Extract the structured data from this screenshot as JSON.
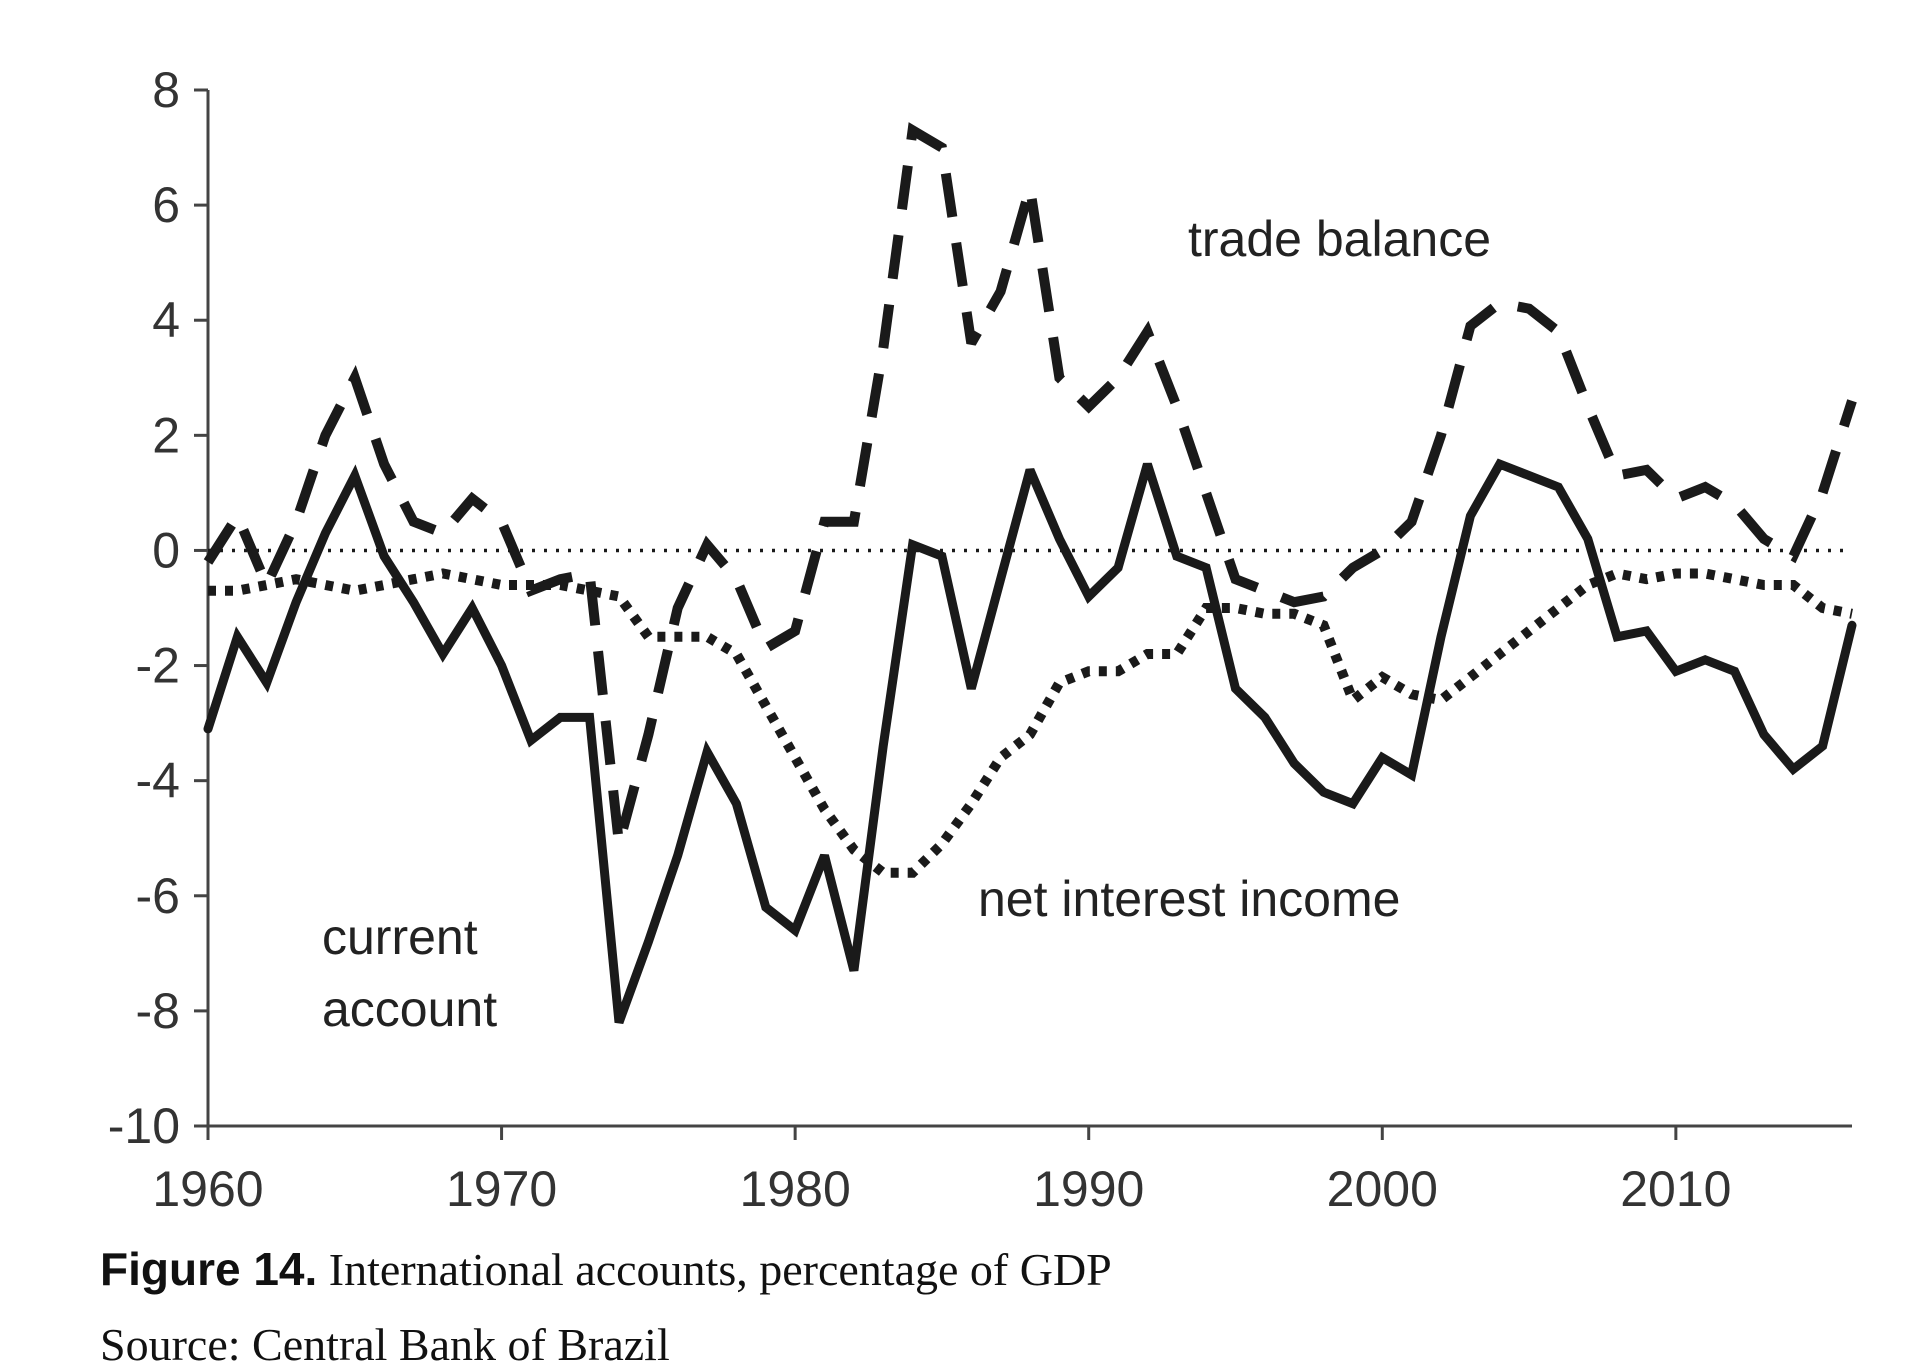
{
  "figure": {
    "number": "Figure 14.",
    "caption": "International accounts, percentage of GDP",
    "source": "Source: Central Bank of Brazil"
  },
  "colors": {
    "line": "#1a1a1a",
    "axis": "#444444"
  },
  "chart_data": {
    "type": "line",
    "title": "",
    "xlabel": "",
    "ylabel": "",
    "xlim": [
      1960,
      2016
    ],
    "ylim": [
      -10,
      8
    ],
    "xticks": [
      1960,
      1970,
      1980,
      1990,
      2000,
      2010
    ],
    "yticks": [
      8,
      6,
      4,
      2,
      0,
      -2,
      -4,
      -6,
      -8,
      -10
    ],
    "grid": false,
    "legend": "none",
    "reference_line": {
      "y": 0,
      "style": "dotted"
    },
    "x": [
      1960,
      1961,
      1962,
      1963,
      1964,
      1965,
      1966,
      1967,
      1968,
      1969,
      1970,
      1971,
      1972,
      1973,
      1974,
      1975,
      1976,
      1977,
      1978,
      1979,
      1980,
      1981,
      1982,
      1983,
      1984,
      1985,
      1986,
      1987,
      1988,
      1989,
      1990,
      1991,
      1992,
      1993,
      1994,
      1995,
      1996,
      1997,
      1998,
      1999,
      2000,
      2001,
      2002,
      2003,
      2004,
      2005,
      2006,
      2007,
      2008,
      2009,
      2010,
      2011,
      2012,
      2013,
      2014,
      2015,
      2016
    ],
    "series": [
      {
        "name": "trade balance",
        "style": "dashed",
        "values": [
          -0.2,
          0.6,
          -0.6,
          0.5,
          2.0,
          3.0,
          1.5,
          0.5,
          0.3,
          0.9,
          0.5,
          -0.7,
          -0.5,
          -0.4,
          -5.1,
          -3.2,
          -1.0,
          0.1,
          -0.5,
          -1.7,
          -1.4,
          0.5,
          0.5,
          3.5,
          7.3,
          7.0,
          3.6,
          4.5,
          6.3,
          3.0,
          2.5,
          3.0,
          3.8,
          2.5,
          1.0,
          -0.5,
          -0.7,
          -0.9,
          -0.8,
          -0.3,
          0.0,
          0.5,
          2.0,
          3.9,
          4.3,
          4.2,
          3.8,
          2.5,
          1.3,
          1.4,
          0.9,
          1.1,
          0.8,
          0.2,
          -0.1,
          1.0,
          2.6
        ]
      },
      {
        "name": "current account",
        "style": "solid",
        "values": [
          -3.1,
          -1.5,
          -2.3,
          -0.9,
          0.3,
          1.3,
          -0.1,
          -0.9,
          -1.8,
          -1.0,
          -2.0,
          -3.3,
          -2.9,
          -2.9,
          -8.2,
          -6.8,
          -5.3,
          -3.5,
          -4.4,
          -6.2,
          -6.6,
          -5.3,
          -7.3,
          -3.4,
          0.1,
          -0.1,
          -2.4,
          -0.5,
          1.4,
          0.2,
          -0.8,
          -0.3,
          1.5,
          -0.1,
          -0.3,
          -2.4,
          -2.9,
          -3.7,
          -4.2,
          -4.4,
          -3.6,
          -3.9,
          -1.5,
          0.6,
          1.5,
          1.3,
          1.1,
          0.2,
          -1.5,
          -1.4,
          -2.1,
          -1.9,
          -2.1,
          -3.2,
          -3.8,
          -3.4,
          -1.3
        ]
      },
      {
        "name": "net interest income",
        "style": "dotted",
        "values": [
          -0.7,
          -0.7,
          -0.6,
          -0.5,
          -0.6,
          -0.7,
          -0.6,
          -0.5,
          -0.4,
          -0.5,
          -0.6,
          -0.6,
          -0.6,
          -0.7,
          -0.8,
          -1.5,
          -1.5,
          -1.5,
          -1.8,
          -2.7,
          -3.6,
          -4.5,
          -5.2,
          -5.6,
          -5.6,
          -5.1,
          -4.4,
          -3.6,
          -3.2,
          -2.3,
          -2.1,
          -2.1,
          -1.8,
          -1.8,
          -1.0,
          -1.0,
          -1.1,
          -1.1,
          -1.3,
          -2.6,
          -2.2,
          -2.5,
          -2.6,
          -2.2,
          -1.8,
          -1.4,
          -1.0,
          -0.6,
          -0.4,
          -0.5,
          -0.4,
          -0.4,
          -0.5,
          -0.6,
          -0.6,
          -1.0,
          -1.1
        ]
      }
    ],
    "annotations": {
      "trade_balance": "trade balance",
      "net_interest_income": "net interest income",
      "current_account_1": "current",
      "current_account_2": "account"
    }
  }
}
